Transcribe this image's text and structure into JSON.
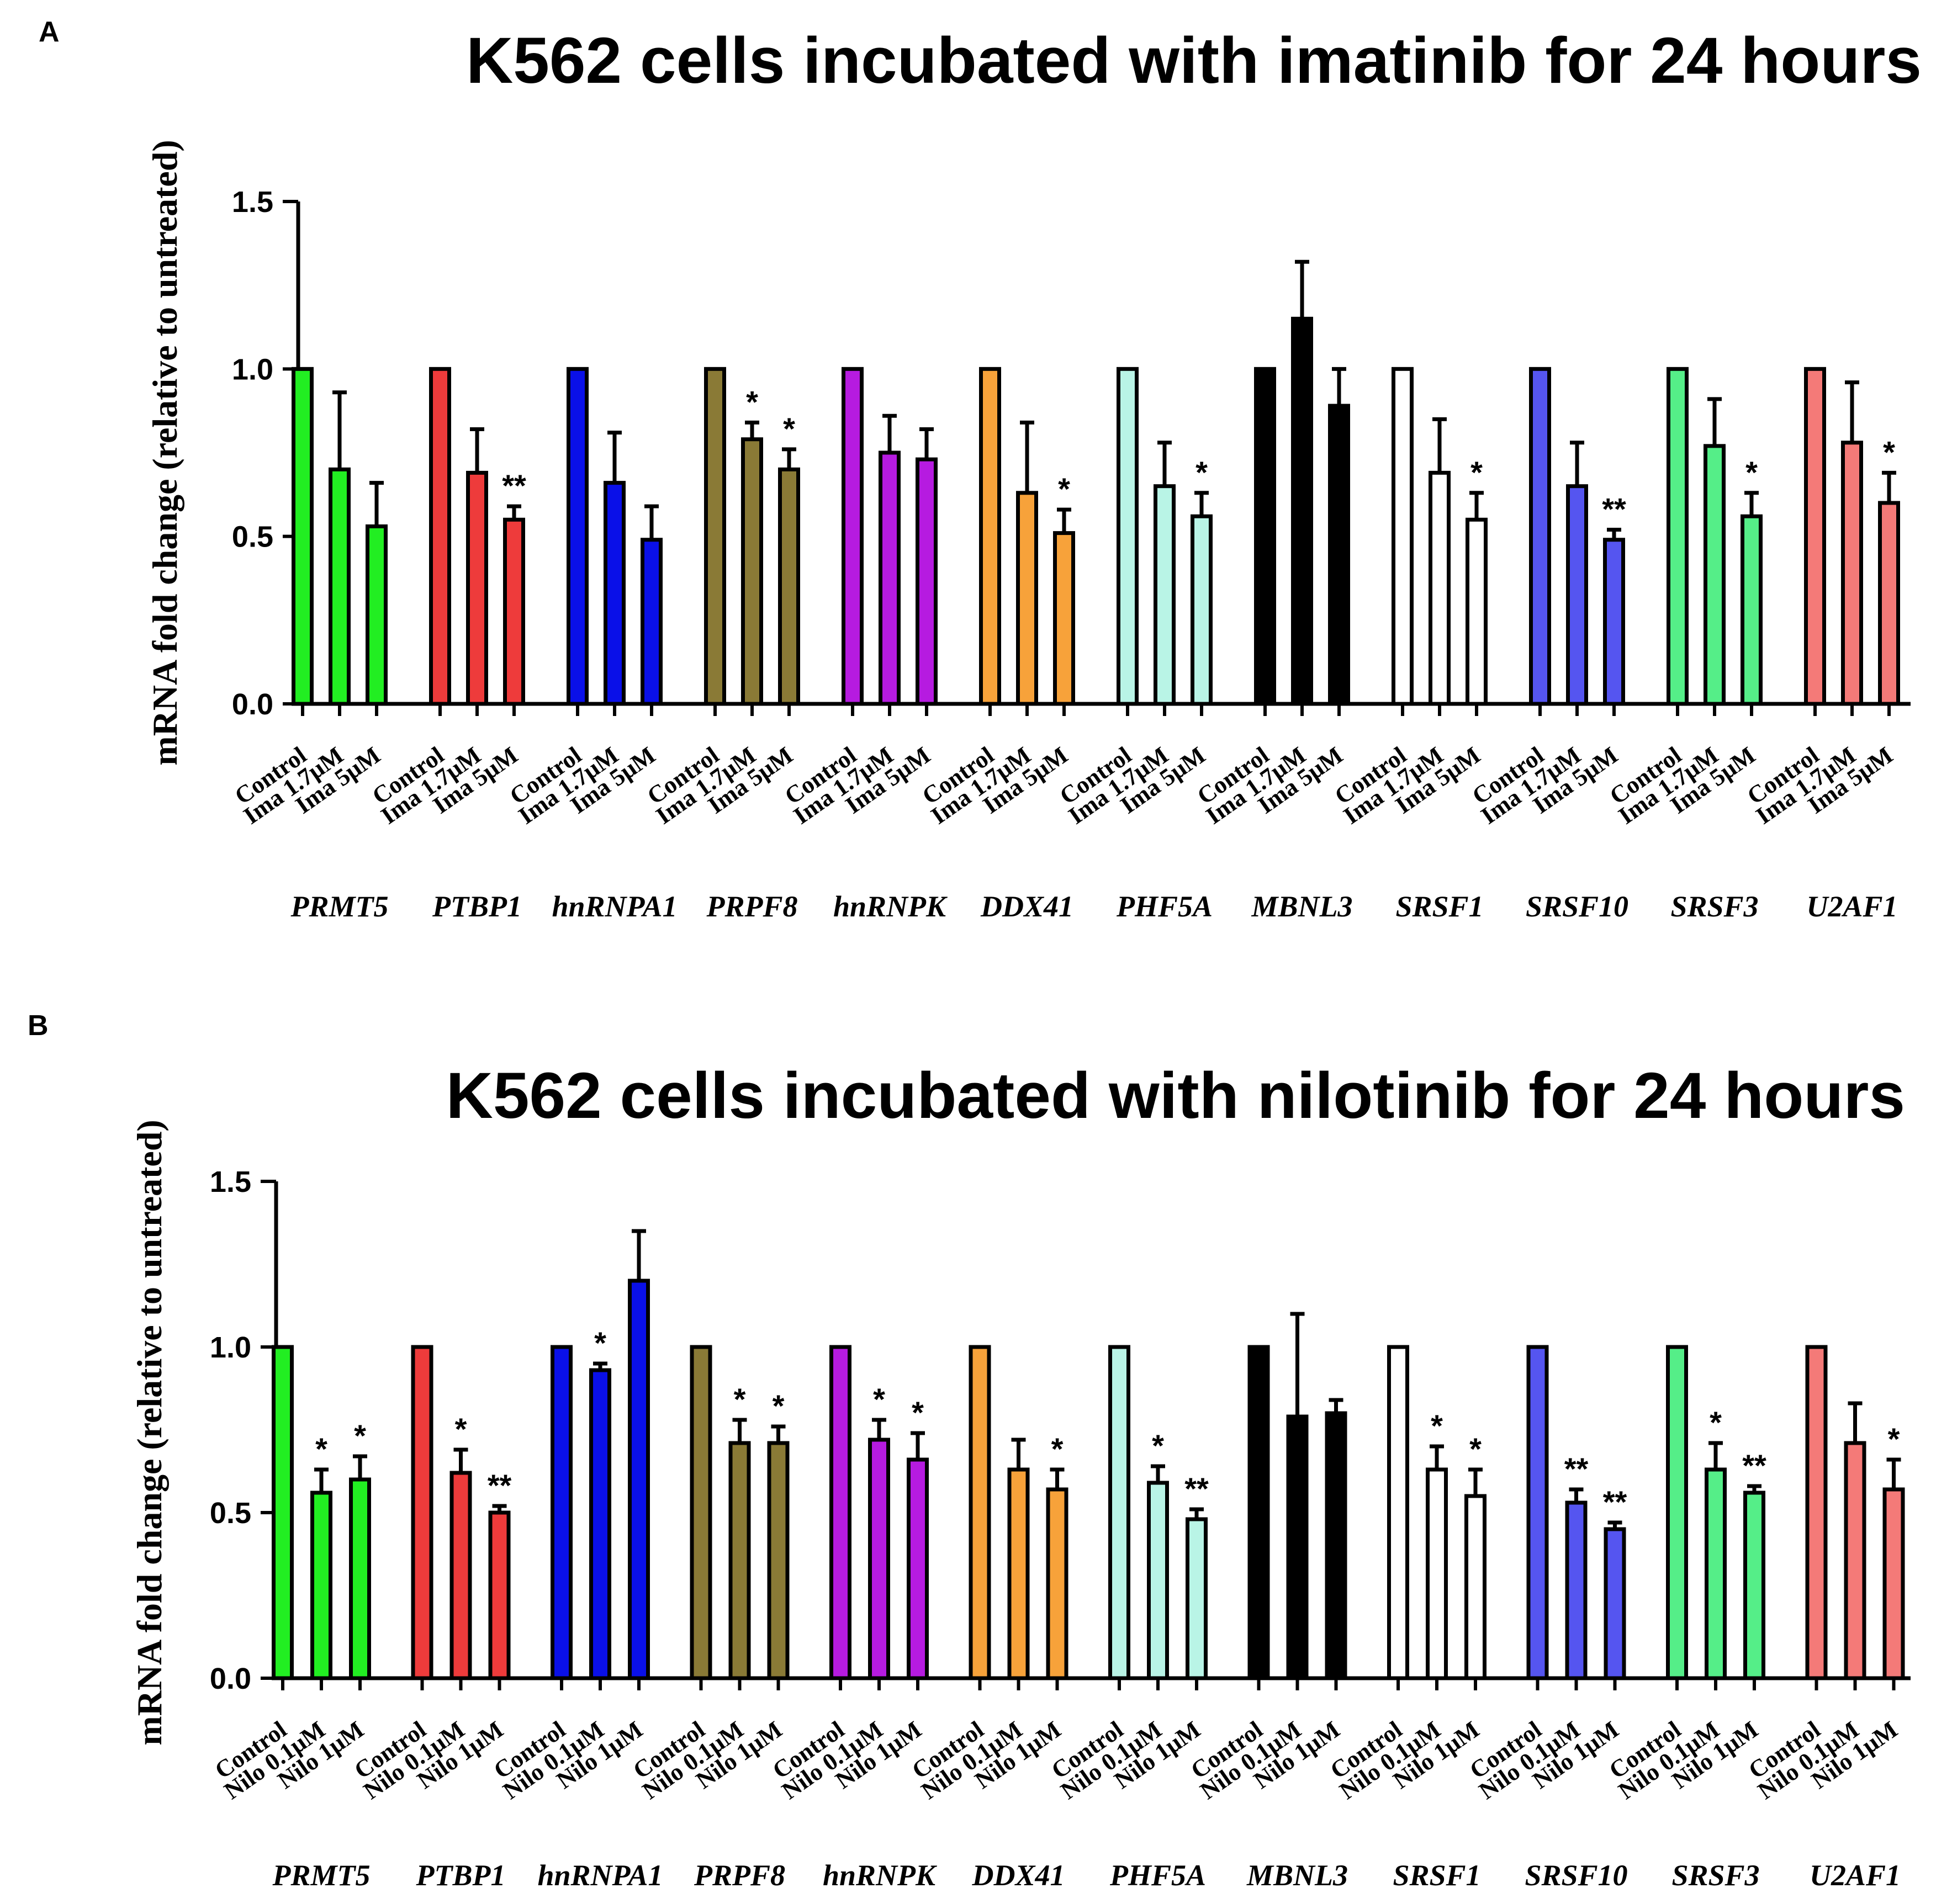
{
  "chart_data": [
    {
      "type": "bar",
      "panel": "A",
      "title": "K562 cells incubated with imatinib for 24 hours",
      "ylabel": "mRNA fold change (relative to untreated)",
      "ylim": [
        0,
        1.5
      ],
      "yticks": [
        "0.0",
        "0.5",
        "1.0",
        "1.5"
      ],
      "conditions": [
        "Control",
        "Ima 1.7μM",
        "Ima 5μM"
      ],
      "groups": [
        {
          "gene": "PRMT5",
          "color": "#22ee22",
          "values": [
            1.0,
            0.7,
            0.53
          ],
          "errors": [
            0,
            0.23,
            0.13
          ],
          "sig": [
            "",
            "",
            ""
          ]
        },
        {
          "gene": "PTBP1",
          "color": "#ee3b3b",
          "values": [
            1.0,
            0.69,
            0.55
          ],
          "errors": [
            0,
            0.13,
            0.04
          ],
          "sig": [
            "",
            "",
            "**"
          ]
        },
        {
          "gene": "hnRNPA1",
          "color": "#0a10e8",
          "values": [
            1.0,
            0.66,
            0.49
          ],
          "errors": [
            0,
            0.15,
            0.1
          ],
          "sig": [
            "",
            "",
            ""
          ]
        },
        {
          "gene": "PRPF8",
          "color": "#8a7a36",
          "values": [
            1.0,
            0.79,
            0.7
          ],
          "errors": [
            0,
            0.05,
            0.06
          ],
          "sig": [
            "",
            "*",
            "*"
          ]
        },
        {
          "gene": "hnRNPK",
          "color": "#b61be0",
          "values": [
            1.0,
            0.75,
            0.73
          ],
          "errors": [
            0,
            0.11,
            0.09
          ],
          "sig": [
            "",
            "",
            ""
          ]
        },
        {
          "gene": "DDX41",
          "color": "#f7a23a",
          "values": [
            1.0,
            0.63,
            0.51
          ],
          "errors": [
            0,
            0.21,
            0.07
          ],
          "sig": [
            "",
            "",
            "*"
          ]
        },
        {
          "gene": "PHF5A",
          "color": "#b9f4e6",
          "values": [
            1.0,
            0.65,
            0.56
          ],
          "errors": [
            0,
            0.13,
            0.07
          ],
          "sig": [
            "",
            "",
            "*"
          ]
        },
        {
          "gene": "MBNL3",
          "color": "#000000",
          "values": [
            1.0,
            1.15,
            0.89
          ],
          "errors": [
            0,
            0.17,
            0.11
          ],
          "sig": [
            "",
            "",
            ""
          ]
        },
        {
          "gene": "SRSF1",
          "color": "#ffffff",
          "values": [
            1.0,
            0.69,
            0.55
          ],
          "errors": [
            0,
            0.16,
            0.08
          ],
          "sig": [
            "",
            "",
            "*"
          ]
        },
        {
          "gene": "SRSF10",
          "color": "#5555f0",
          "values": [
            1.0,
            0.65,
            0.49
          ],
          "errors": [
            0,
            0.13,
            0.03
          ],
          "sig": [
            "",
            "",
            "**"
          ]
        },
        {
          "gene": "SRSF3",
          "color": "#55ee88",
          "values": [
            1.0,
            0.77,
            0.56
          ],
          "errors": [
            0,
            0.14,
            0.07
          ],
          "sig": [
            "",
            "",
            "*"
          ]
        },
        {
          "gene": "U2AF1",
          "color": "#f47a78",
          "values": [
            1.0,
            0.78,
            0.6
          ],
          "errors": [
            0,
            0.18,
            0.09
          ],
          "sig": [
            "",
            "",
            "*"
          ]
        }
      ]
    },
    {
      "type": "bar",
      "panel": "B",
      "title": "K562 cells incubated with nilotinib for 24 hours",
      "ylabel": "mRNA fold change (relative to untreated)",
      "ylim": [
        0,
        1.5
      ],
      "yticks": [
        "0.0",
        "0.5",
        "1.0",
        "1.5"
      ],
      "conditions": [
        "Control",
        "Nilo 0.1μM",
        "Nilo 1μM"
      ],
      "groups": [
        {
          "gene": "PRMT5",
          "color": "#22ee22",
          "values": [
            1.0,
            0.56,
            0.6
          ],
          "errors": [
            0,
            0.07,
            0.07
          ],
          "sig": [
            "",
            "*",
            "*"
          ]
        },
        {
          "gene": "PTBP1",
          "color": "#ee3b3b",
          "values": [
            1.0,
            0.62,
            0.5
          ],
          "errors": [
            0,
            0.07,
            0.02
          ],
          "sig": [
            "",
            "*",
            "**"
          ]
        },
        {
          "gene": "hnRNPA1",
          "color": "#0a10e8",
          "values": [
            1.0,
            0.93,
            1.2
          ],
          "errors": [
            0,
            0.02,
            0.15
          ],
          "sig": [
            "",
            "*",
            ""
          ]
        },
        {
          "gene": "PRPF8",
          "color": "#8a7a36",
          "values": [
            1.0,
            0.71,
            0.71
          ],
          "errors": [
            0,
            0.07,
            0.05
          ],
          "sig": [
            "",
            "*",
            "*"
          ]
        },
        {
          "gene": "hnRNPK",
          "color": "#b61be0",
          "values": [
            1.0,
            0.72,
            0.66
          ],
          "errors": [
            0,
            0.06,
            0.08
          ],
          "sig": [
            "",
            "*",
            "*"
          ]
        },
        {
          "gene": "DDX41",
          "color": "#f7a23a",
          "values": [
            1.0,
            0.63,
            0.57
          ],
          "errors": [
            0,
            0.09,
            0.06
          ],
          "sig": [
            "",
            "",
            "*"
          ]
        },
        {
          "gene": "PHF5A",
          "color": "#b9f4e6",
          "values": [
            1.0,
            0.59,
            0.48
          ],
          "errors": [
            0,
            0.05,
            0.03
          ],
          "sig": [
            "",
            "*",
            "**"
          ]
        },
        {
          "gene": "MBNL3",
          "color": "#000000",
          "values": [
            1.0,
            0.79,
            0.8
          ],
          "errors": [
            0,
            0.31,
            0.04
          ],
          "sig": [
            "",
            "",
            ""
          ]
        },
        {
          "gene": "SRSF1",
          "color": "#ffffff",
          "values": [
            1.0,
            0.63,
            0.55
          ],
          "errors": [
            0,
            0.07,
            0.08
          ],
          "sig": [
            "",
            "*",
            "*"
          ]
        },
        {
          "gene": "SRSF10",
          "color": "#5555f0",
          "values": [
            1.0,
            0.53,
            0.45
          ],
          "errors": [
            0,
            0.04,
            0.02
          ],
          "sig": [
            "",
            "**",
            "**"
          ]
        },
        {
          "gene": "SRSF3",
          "color": "#55ee88",
          "values": [
            1.0,
            0.63,
            0.56
          ],
          "errors": [
            0,
            0.08,
            0.02
          ],
          "sig": [
            "",
            "*",
            "**"
          ]
        },
        {
          "gene": "U2AF1",
          "color": "#f47a78",
          "values": [
            1.0,
            0.71,
            0.57
          ],
          "errors": [
            0,
            0.12,
            0.09
          ],
          "sig": [
            "",
            "",
            "*"
          ]
        }
      ]
    }
  ]
}
